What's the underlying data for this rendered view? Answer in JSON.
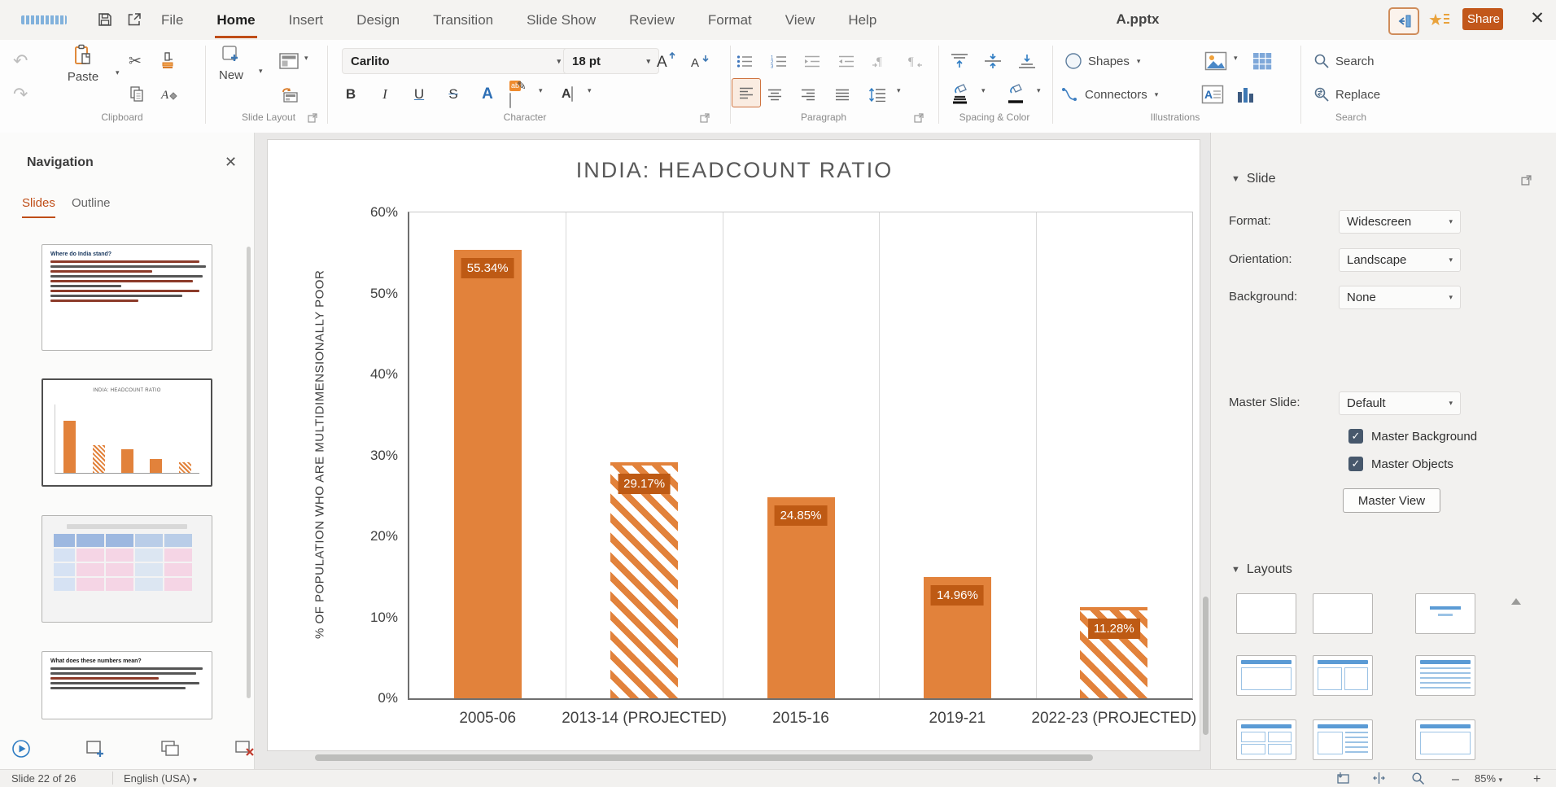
{
  "titlebar": {
    "document_title": "A.pptx",
    "share_label": "Share",
    "menu_tabs": [
      {
        "label": "File",
        "active": false
      },
      {
        "label": "Home",
        "active": true
      },
      {
        "label": "Insert",
        "active": false
      },
      {
        "label": "Design",
        "active": false
      },
      {
        "label": "Transition",
        "active": false
      },
      {
        "label": "Slide Show",
        "active": false
      },
      {
        "label": "Review",
        "active": false
      },
      {
        "label": "Format",
        "active": false
      },
      {
        "label": "View",
        "active": false
      },
      {
        "label": "Help",
        "active": false
      }
    ]
  },
  "ribbon": {
    "group_labels": [
      "Clipboard",
      "Slide Layout",
      "Character",
      "Paragraph",
      "Spacing & Color",
      "Illustrations",
      "Search"
    ],
    "paste_label": "Paste",
    "new_label": "New",
    "font_name": "Carlito",
    "font_size": "18 pt",
    "shapes_label": "Shapes",
    "connectors_label": "Connectors",
    "search_label": "Search",
    "replace_label": "Replace"
  },
  "navigation": {
    "title": "Navigation",
    "tabs": [
      {
        "label": "Slides",
        "active": true
      },
      {
        "label": "Outline",
        "active": false
      }
    ],
    "thumb1_title": "Where do India stand?",
    "thumb4_title": "What does these numbers mean?"
  },
  "sidebar": {
    "slide_section": {
      "title": "Slide",
      "fields": [
        {
          "label": "Format:",
          "value": "Widescreen"
        },
        {
          "label": "Orientation:",
          "value": "Landscape"
        },
        {
          "label": "Background:",
          "value": "None"
        },
        {
          "label": "Master Slide:",
          "value": "Default"
        }
      ],
      "checkboxes": [
        {
          "label": "Master Background",
          "checked": true
        },
        {
          "label": "Master Objects",
          "checked": true
        }
      ],
      "master_view_label": "Master View"
    },
    "layouts_section": {
      "title": "Layouts"
    }
  },
  "statusbar": {
    "slide_position": "Slide 22 of 26",
    "language": "English (USA)",
    "zoom_level": "85%",
    "zoom_out": "–",
    "zoom_in": "+"
  },
  "chart_data": {
    "type": "bar",
    "title": "INDIA: HEADCOUNT RATIO",
    "ylabel": "% OF POPULATION WHO ARE MULTIDIMENSIONALLY POOR",
    "xlabel": "",
    "categories": [
      "2005-06",
      "2013-14 (PROJECTED)",
      "2015-16",
      "2019-21",
      "2022-23 (PROJECTED)"
    ],
    "values": [
      55.34,
      29.17,
      24.85,
      14.96,
      11.28
    ],
    "data_labels": [
      "55.34%",
      "29.17%",
      "24.85%",
      "14.96%",
      "11.28%"
    ],
    "hatched": [
      false,
      true,
      false,
      false,
      true
    ],
    "ylim": [
      0,
      60
    ],
    "yticks": [
      "0%",
      "10%",
      "20%",
      "30%",
      "40%",
      "50%",
      "60%"
    ],
    "vertical_gridlines": true,
    "legend": "none",
    "bar_color": "#E2823B",
    "label_box_color": "#BE5A14"
  },
  "colors": {
    "accent_orange": "#BF4D17",
    "share_button": "#C2571B",
    "bar": "#E2823B",
    "bar_label_box": "#BE5A14",
    "checkbox": "#47586C",
    "selected_tool_bg": "#FAECE1",
    "selected_tool_border": "#CF7440"
  }
}
